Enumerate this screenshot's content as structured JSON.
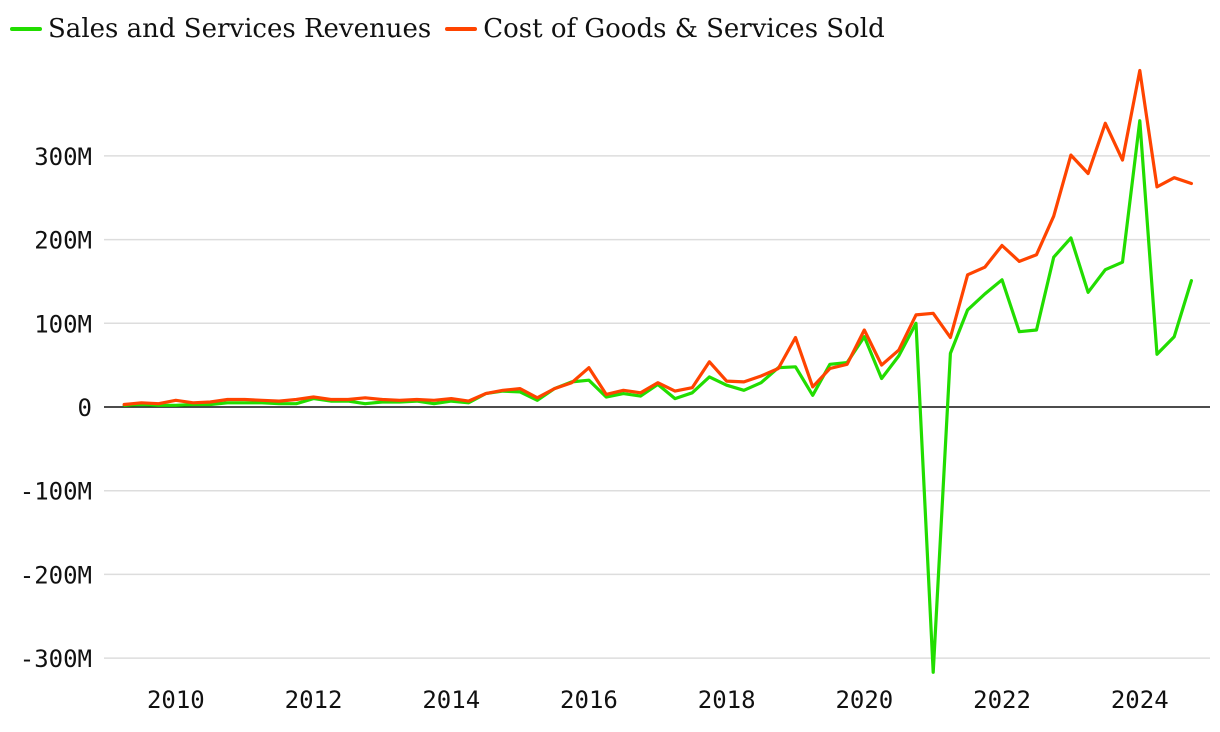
{
  "chart_data": {
    "type": "line",
    "title": "",
    "xlabel": "",
    "ylabel": "",
    "ylim": [
      -330,
      400
    ],
    "xlim": [
      2009.0,
      2025.0
    ],
    "y_ticks": [
      {
        "value": 300,
        "label": "300M"
      },
      {
        "value": 200,
        "label": "200M"
      },
      {
        "value": 100,
        "label": "100M"
      },
      {
        "value": 0,
        "label": "0"
      },
      {
        "value": -100,
        "label": "-100M"
      },
      {
        "value": -200,
        "label": "-200M"
      },
      {
        "value": -300,
        "label": "-300M"
      }
    ],
    "x_ticks": [
      {
        "value": 2010,
        "label": "2010"
      },
      {
        "value": 2012,
        "label": "2012"
      },
      {
        "value": 2014,
        "label": "2014"
      },
      {
        "value": 2016,
        "label": "2016"
      },
      {
        "value": 2018,
        "label": "2018"
      },
      {
        "value": 2020,
        "label": "2020"
      },
      {
        "value": 2022,
        "label": "2022"
      },
      {
        "value": 2024,
        "label": "2024"
      }
    ],
    "legend_position": "top-left",
    "series": [
      {
        "name": "Sales and Services Revenues",
        "color": "#22dd00",
        "x": [
          2009.25,
          2009.5,
          2009.75,
          2010.0,
          2010.25,
          2010.5,
          2010.75,
          2011.0,
          2011.25,
          2011.5,
          2011.75,
          2012.0,
          2012.25,
          2012.5,
          2012.75,
          2013.0,
          2013.25,
          2013.5,
          2013.75,
          2014.0,
          2014.25,
          2014.5,
          2014.75,
          2015.0,
          2015.25,
          2015.5,
          2015.75,
          2016.0,
          2016.25,
          2016.5,
          2016.75,
          2017.0,
          2017.25,
          2017.5,
          2017.75,
          2018.0,
          2018.25,
          2018.5,
          2018.75,
          2019.0,
          2019.25,
          2019.5,
          2019.75,
          2020.0,
          2020.25,
          2020.5,
          2020.75,
          2021.0,
          2021.25,
          2021.5,
          2021.75,
          2022.0,
          2022.25,
          2022.5,
          2022.75,
          2023.0,
          2023.25,
          2023.5,
          2023.75,
          2024.0,
          2024.25,
          2024.5,
          2024.75
        ],
        "values": [
          2,
          3,
          2,
          2,
          3,
          3,
          5,
          5,
          5,
          4,
          4,
          10,
          7,
          7,
          4,
          6,
          6,
          7,
          4,
          7,
          5,
          16,
          19,
          18,
          8,
          22,
          30,
          32,
          12,
          16,
          13,
          27,
          10,
          17,
          36,
          26,
          20,
          29,
          47,
          48,
          14,
          51,
          53,
          84,
          34,
          61,
          100,
          -317,
          64,
          116,
          135,
          152,
          90,
          92,
          179,
          202,
          137,
          164,
          173,
          342,
          63,
          84,
          151
        ]
      },
      {
        "name": "Cost of Goods & Services Sold",
        "color": "#ff4400",
        "x": [
          2009.25,
          2009.5,
          2009.75,
          2010.0,
          2010.25,
          2010.5,
          2010.75,
          2011.0,
          2011.25,
          2011.5,
          2011.75,
          2012.0,
          2012.25,
          2012.5,
          2012.75,
          2013.0,
          2013.25,
          2013.5,
          2013.75,
          2014.0,
          2014.25,
          2014.5,
          2014.75,
          2015.0,
          2015.25,
          2015.5,
          2015.75,
          2016.0,
          2016.25,
          2016.5,
          2016.75,
          2017.0,
          2017.25,
          2017.5,
          2017.75,
          2018.0,
          2018.25,
          2018.5,
          2018.75,
          2019.0,
          2019.25,
          2019.5,
          2019.75,
          2020.0,
          2020.25,
          2020.5,
          2020.75,
          2021.0,
          2021.25,
          2021.5,
          2021.75,
          2022.0,
          2022.25,
          2022.5,
          2022.75,
          2023.0,
          2023.25,
          2023.5,
          2023.75,
          2024.0,
          2024.25,
          2024.5,
          2024.75
        ],
        "values": [
          3,
          5,
          4,
          8,
          5,
          6,
          9,
          9,
          8,
          7,
          9,
          12,
          9,
          9,
          11,
          9,
          8,
          9,
          8,
          10,
          7,
          16,
          20,
          22,
          11,
          22,
          29,
          47,
          15,
          20,
          17,
          29,
          19,
          23,
          54,
          31,
          30,
          37,
          46,
          83,
          24,
          46,
          51,
          92,
          50,
          68,
          110,
          112,
          83,
          158,
          167,
          193,
          174,
          182,
          228,
          301,
          279,
          339,
          295,
          402,
          263,
          274,
          267
        ]
      }
    ]
  }
}
